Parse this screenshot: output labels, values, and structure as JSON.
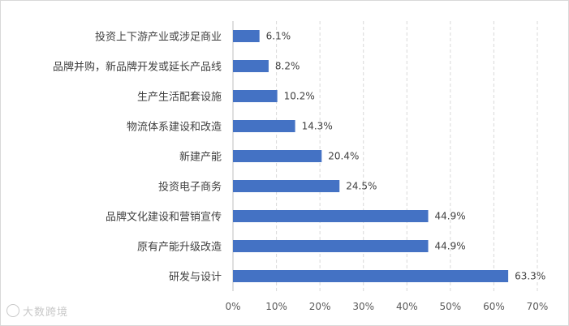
{
  "chart_data": {
    "type": "bar",
    "orientation": "horizontal",
    "categories": [
      "投资上下游产业或涉足商业",
      "品牌并购，新品牌开发或延长产品线",
      "生产生活配套设施",
      "物流体系建设和改造",
      "新建产能",
      "投资电子商务",
      "品牌文化建设和营销宣传",
      "原有产能升级改造",
      "研发与设计"
    ],
    "values": [
      6.1,
      8.2,
      10.2,
      14.3,
      20.4,
      24.5,
      44.9,
      44.9,
      63.3
    ],
    "data_labels": [
      "6.1%",
      "8.2%",
      "10.2%",
      "14.3%",
      "20.4%",
      "24.5%",
      "44.9%",
      "44.9%",
      "63.3%"
    ],
    "x_ticks": [
      "0%",
      "10%",
      "20%",
      "30%",
      "40%",
      "50%",
      "60%",
      "70%"
    ],
    "xlim": [
      0,
      70
    ],
    "grid": true,
    "bar_color": "#4472c4"
  },
  "watermark": {
    "text": "大数跨境"
  }
}
